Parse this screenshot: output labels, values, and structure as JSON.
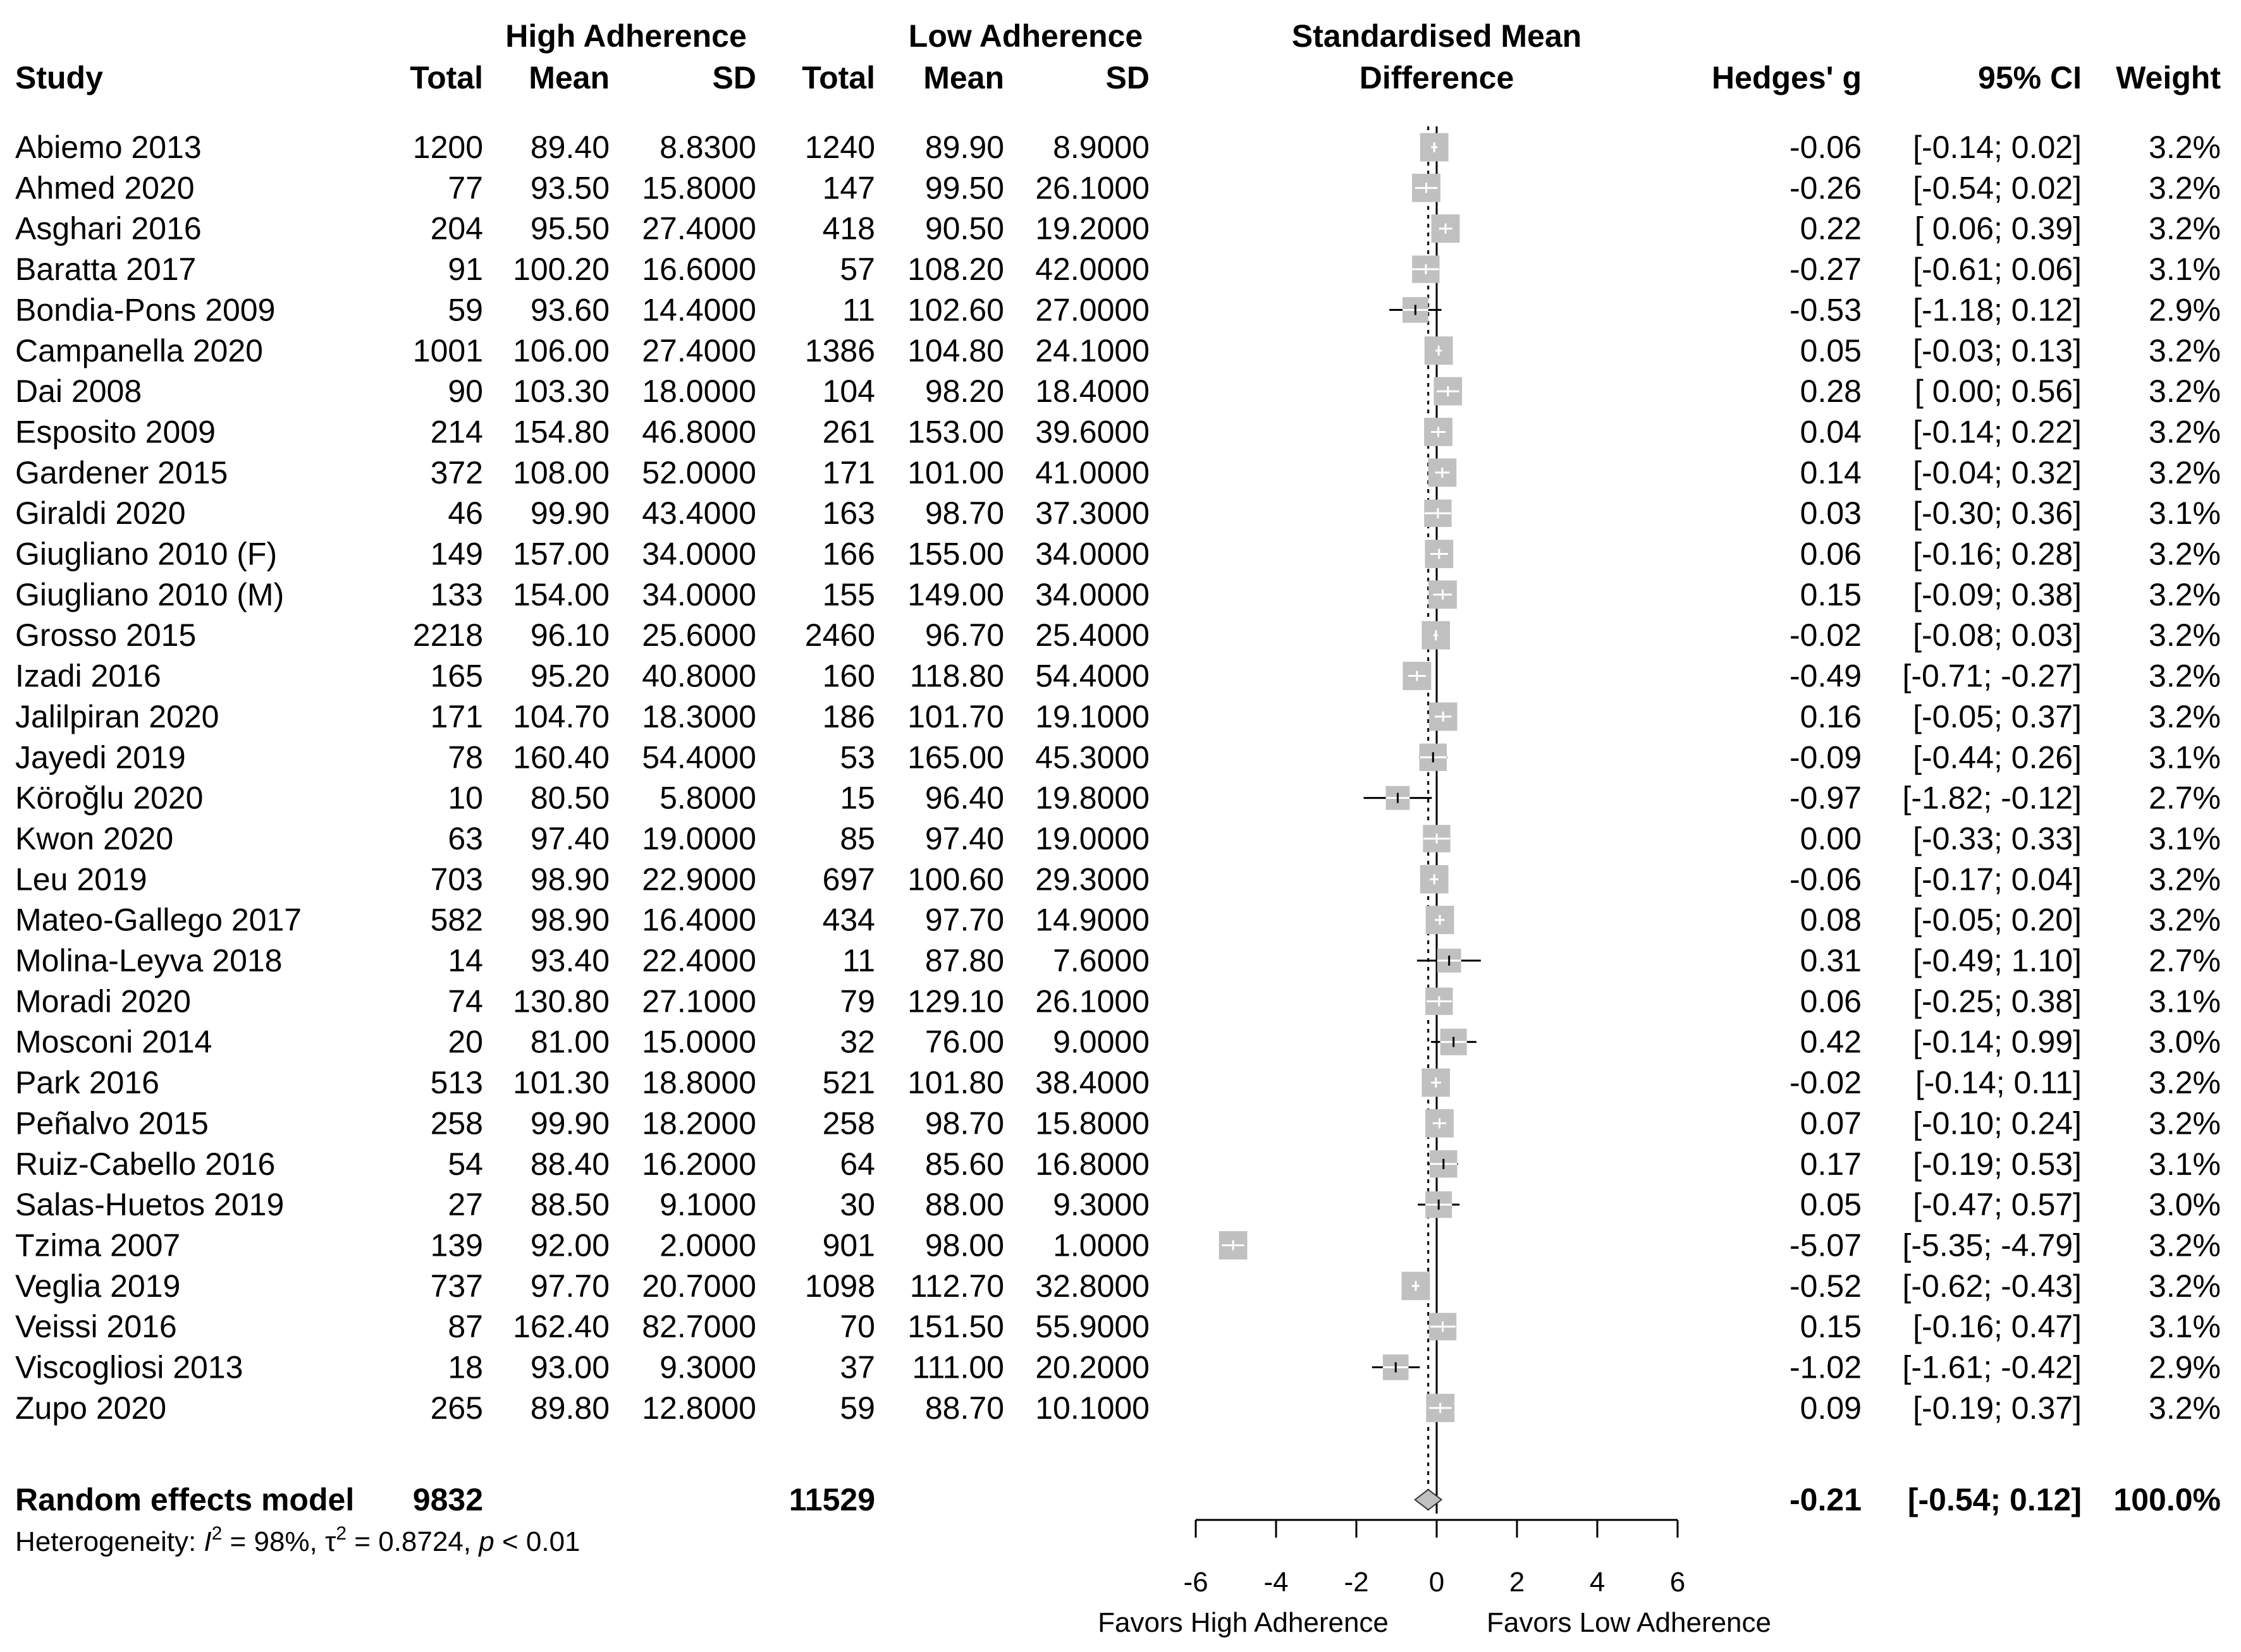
{
  "chart_data": {
    "type": "forest",
    "title": "Standardised Mean Difference",
    "headers": {
      "group_high": "High Adherence",
      "group_low": "Low Adherence",
      "study": "Study",
      "total": "Total",
      "mean": "Mean",
      "sd": "SD",
      "smd_line1": "Standardised Mean",
      "smd_line2": "Difference",
      "hedges": "Hedges' g",
      "ci": "95% CI",
      "weight": "Weight"
    },
    "studies": [
      {
        "study": "Abiemo 2013",
        "hi_total": "1200",
        "hi_mean": "89.40",
        "hi_sd": "8.8300",
        "lo_total": "1240",
        "lo_mean": "89.90",
        "lo_sd": "8.9000",
        "g": "-0.06",
        "ci": "[-0.14; 0.02]",
        "weight": "3.2%",
        "g_val": -0.06,
        "lo_val": -0.14,
        "hi_val": 0.02,
        "w_val": 3.2
      },
      {
        "study": "Ahmed 2020",
        "hi_total": "77",
        "hi_mean": "93.50",
        "hi_sd": "15.8000",
        "lo_total": "147",
        "lo_mean": "99.50",
        "lo_sd": "26.1000",
        "g": "-0.26",
        "ci": "[-0.54; 0.02]",
        "weight": "3.2%",
        "g_val": -0.26,
        "lo_val": -0.54,
        "hi_val": 0.02,
        "w_val": 3.2
      },
      {
        "study": "Asghari 2016",
        "hi_total": "204",
        "hi_mean": "95.50",
        "hi_sd": "27.4000",
        "lo_total": "418",
        "lo_mean": "90.50",
        "lo_sd": "19.2000",
        "g": "0.22",
        "ci": "[ 0.06; 0.39]",
        "weight": "3.2%",
        "g_val": 0.22,
        "lo_val": 0.06,
        "hi_val": 0.39,
        "w_val": 3.2
      },
      {
        "study": "Baratta 2017",
        "hi_total": "91",
        "hi_mean": "100.20",
        "hi_sd": "16.6000",
        "lo_total": "57",
        "lo_mean": "108.20",
        "lo_sd": "42.0000",
        "g": "-0.27",
        "ci": "[-0.61; 0.06]",
        "weight": "3.1%",
        "g_val": -0.27,
        "lo_val": -0.61,
        "hi_val": 0.06,
        "w_val": 3.1
      },
      {
        "study": "Bondia-Pons 2009",
        "hi_total": "59",
        "hi_mean": "93.60",
        "hi_sd": "14.4000",
        "lo_total": "11",
        "lo_mean": "102.60",
        "lo_sd": "27.0000",
        "g": "-0.53",
        "ci": "[-1.18; 0.12]",
        "weight": "2.9%",
        "g_val": -0.53,
        "lo_val": -1.18,
        "hi_val": 0.12,
        "w_val": 2.9
      },
      {
        "study": "Campanella 2020",
        "hi_total": "1001",
        "hi_mean": "106.00",
        "hi_sd": "27.4000",
        "lo_total": "1386",
        "lo_mean": "104.80",
        "lo_sd": "24.1000",
        "g": "0.05",
        "ci": "[-0.03; 0.13]",
        "weight": "3.2%",
        "g_val": 0.05,
        "lo_val": -0.03,
        "hi_val": 0.13,
        "w_val": 3.2
      },
      {
        "study": "Dai 2008",
        "hi_total": "90",
        "hi_mean": "103.30",
        "hi_sd": "18.0000",
        "lo_total": "104",
        "lo_mean": "98.20",
        "lo_sd": "18.4000",
        "g": "0.28",
        "ci": "[ 0.00; 0.56]",
        "weight": "3.2%",
        "g_val": 0.28,
        "lo_val": 0.0,
        "hi_val": 0.56,
        "w_val": 3.2
      },
      {
        "study": "Esposito 2009",
        "hi_total": "214",
        "hi_mean": "154.80",
        "hi_sd": "46.8000",
        "lo_total": "261",
        "lo_mean": "153.00",
        "lo_sd": "39.6000",
        "g": "0.04",
        "ci": "[-0.14; 0.22]",
        "weight": "3.2%",
        "g_val": 0.04,
        "lo_val": -0.14,
        "hi_val": 0.22,
        "w_val": 3.2
      },
      {
        "study": "Gardener 2015",
        "hi_total": "372",
        "hi_mean": "108.00",
        "hi_sd": "52.0000",
        "lo_total": "171",
        "lo_mean": "101.00",
        "lo_sd": "41.0000",
        "g": "0.14",
        "ci": "[-0.04; 0.32]",
        "weight": "3.2%",
        "g_val": 0.14,
        "lo_val": -0.04,
        "hi_val": 0.32,
        "w_val": 3.2
      },
      {
        "study": "Giraldi 2020",
        "hi_total": "46",
        "hi_mean": "99.90",
        "hi_sd": "43.4000",
        "lo_total": "163",
        "lo_mean": "98.70",
        "lo_sd": "37.3000",
        "g": "0.03",
        "ci": "[-0.30; 0.36]",
        "weight": "3.1%",
        "g_val": 0.03,
        "lo_val": -0.3,
        "hi_val": 0.36,
        "w_val": 3.1
      },
      {
        "study": "Giugliano 2010 (F)",
        "hi_total": "149",
        "hi_mean": "157.00",
        "hi_sd": "34.0000",
        "lo_total": "166",
        "lo_mean": "155.00",
        "lo_sd": "34.0000",
        "g": "0.06",
        "ci": "[-0.16; 0.28]",
        "weight": "3.2%",
        "g_val": 0.06,
        "lo_val": -0.16,
        "hi_val": 0.28,
        "w_val": 3.2
      },
      {
        "study": "Giugliano 2010 (M)",
        "hi_total": "133",
        "hi_mean": "154.00",
        "hi_sd": "34.0000",
        "lo_total": "155",
        "lo_mean": "149.00",
        "lo_sd": "34.0000",
        "g": "0.15",
        "ci": "[-0.09; 0.38]",
        "weight": "3.2%",
        "g_val": 0.15,
        "lo_val": -0.09,
        "hi_val": 0.38,
        "w_val": 3.2
      },
      {
        "study": "Grosso 2015",
        "hi_total": "2218",
        "hi_mean": "96.10",
        "hi_sd": "25.6000",
        "lo_total": "2460",
        "lo_mean": "96.70",
        "lo_sd": "25.4000",
        "g": "-0.02",
        "ci": "[-0.08; 0.03]",
        "weight": "3.2%",
        "g_val": -0.02,
        "lo_val": -0.08,
        "hi_val": 0.03,
        "w_val": 3.2
      },
      {
        "study": "Izadi 2016",
        "hi_total": "165",
        "hi_mean": "95.20",
        "hi_sd": "40.8000",
        "lo_total": "160",
        "lo_mean": "118.80",
        "lo_sd": "54.4000",
        "g": "-0.49",
        "ci": "[-0.71; -0.27]",
        "weight": "3.2%",
        "g_val": -0.49,
        "lo_val": -0.71,
        "hi_val": -0.27,
        "w_val": 3.2
      },
      {
        "study": "Jalilpiran 2020",
        "hi_total": "171",
        "hi_mean": "104.70",
        "hi_sd": "18.3000",
        "lo_total": "186",
        "lo_mean": "101.70",
        "lo_sd": "19.1000",
        "g": "0.16",
        "ci": "[-0.05; 0.37]",
        "weight": "3.2%",
        "g_val": 0.16,
        "lo_val": -0.05,
        "hi_val": 0.37,
        "w_val": 3.2
      },
      {
        "study": "Jayedi 2019",
        "hi_total": "78",
        "hi_mean": "160.40",
        "hi_sd": "54.4000",
        "lo_total": "53",
        "lo_mean": "165.00",
        "lo_sd": "45.3000",
        "g": "-0.09",
        "ci": "[-0.44; 0.26]",
        "weight": "3.1%",
        "g_val": -0.09,
        "lo_val": -0.44,
        "hi_val": 0.26,
        "w_val": 3.1
      },
      {
        "study": "Köroğlu 2020",
        "hi_total": "10",
        "hi_mean": "80.50",
        "hi_sd": "5.8000",
        "lo_total": "15",
        "lo_mean": "96.40",
        "lo_sd": "19.8000",
        "g": "-0.97",
        "ci": "[-1.82; -0.12]",
        "weight": "2.7%",
        "g_val": -0.97,
        "lo_val": -1.82,
        "hi_val": -0.12,
        "w_val": 2.7
      },
      {
        "study": "Kwon 2020",
        "hi_total": "63",
        "hi_mean": "97.40",
        "hi_sd": "19.0000",
        "lo_total": "85",
        "lo_mean": "97.40",
        "lo_sd": "19.0000",
        "g": "0.00",
        "ci": "[-0.33; 0.33]",
        "weight": "3.1%",
        "g_val": 0.0,
        "lo_val": -0.33,
        "hi_val": 0.33,
        "w_val": 3.1
      },
      {
        "study": "Leu 2019",
        "hi_total": "703",
        "hi_mean": "98.90",
        "hi_sd": "22.9000",
        "lo_total": "697",
        "lo_mean": "100.60",
        "lo_sd": "29.3000",
        "g": "-0.06",
        "ci": "[-0.17; 0.04]",
        "weight": "3.2%",
        "g_val": -0.06,
        "lo_val": -0.17,
        "hi_val": 0.04,
        "w_val": 3.2
      },
      {
        "study": "Mateo-Gallego 2017",
        "hi_total": "582",
        "hi_mean": "98.90",
        "hi_sd": "16.4000",
        "lo_total": "434",
        "lo_mean": "97.70",
        "lo_sd": "14.9000",
        "g": "0.08",
        "ci": "[-0.05; 0.20]",
        "weight": "3.2%",
        "g_val": 0.08,
        "lo_val": -0.05,
        "hi_val": 0.2,
        "w_val": 3.2
      },
      {
        "study": "Molina-Leyva 2018",
        "hi_total": "14",
        "hi_mean": "93.40",
        "hi_sd": "22.4000",
        "lo_total": "11",
        "lo_mean": "87.80",
        "lo_sd": "7.6000",
        "g": "0.31",
        "ci": "[-0.49; 1.10]",
        "weight": "2.7%",
        "g_val": 0.31,
        "lo_val": -0.49,
        "hi_val": 1.1,
        "w_val": 2.7
      },
      {
        "study": "Moradi 2020",
        "hi_total": "74",
        "hi_mean": "130.80",
        "hi_sd": "27.1000",
        "lo_total": "79",
        "lo_mean": "129.10",
        "lo_sd": "26.1000",
        "g": "0.06",
        "ci": "[-0.25; 0.38]",
        "weight": "3.1%",
        "g_val": 0.06,
        "lo_val": -0.25,
        "hi_val": 0.38,
        "w_val": 3.1
      },
      {
        "study": "Mosconi 2014",
        "hi_total": "20",
        "hi_mean": "81.00",
        "hi_sd": "15.0000",
        "lo_total": "32",
        "lo_mean": "76.00",
        "lo_sd": "9.0000",
        "g": "0.42",
        "ci": "[-0.14; 0.99]",
        "weight": "3.0%",
        "g_val": 0.42,
        "lo_val": -0.14,
        "hi_val": 0.99,
        "w_val": 3.0
      },
      {
        "study": "Park 2016",
        "hi_total": "513",
        "hi_mean": "101.30",
        "hi_sd": "18.8000",
        "lo_total": "521",
        "lo_mean": "101.80",
        "lo_sd": "38.4000",
        "g": "-0.02",
        "ci": "[-0.14; 0.11]",
        "weight": "3.2%",
        "g_val": -0.02,
        "lo_val": -0.14,
        "hi_val": 0.11,
        "w_val": 3.2
      },
      {
        "study": "Peñalvo 2015",
        "hi_total": "258",
        "hi_mean": "99.90",
        "hi_sd": "18.2000",
        "lo_total": "258",
        "lo_mean": "98.70",
        "lo_sd": "15.8000",
        "g": "0.07",
        "ci": "[-0.10; 0.24]",
        "weight": "3.2%",
        "g_val": 0.07,
        "lo_val": -0.1,
        "hi_val": 0.24,
        "w_val": 3.2
      },
      {
        "study": "Ruiz-Cabello 2016",
        "hi_total": "54",
        "hi_mean": "88.40",
        "hi_sd": "16.2000",
        "lo_total": "64",
        "lo_mean": "85.60",
        "lo_sd": "16.8000",
        "g": "0.17",
        "ci": "[-0.19; 0.53]",
        "weight": "3.1%",
        "g_val": 0.17,
        "lo_val": -0.19,
        "hi_val": 0.53,
        "w_val": 3.1
      },
      {
        "study": "Salas-Huetos 2019",
        "hi_total": "27",
        "hi_mean": "88.50",
        "hi_sd": "9.1000",
        "lo_total": "30",
        "lo_mean": "88.00",
        "lo_sd": "9.3000",
        "g": "0.05",
        "ci": "[-0.47; 0.57]",
        "weight": "3.0%",
        "g_val": 0.05,
        "lo_val": -0.47,
        "hi_val": 0.57,
        "w_val": 3.0
      },
      {
        "study": "Tzima 2007",
        "hi_total": "139",
        "hi_mean": "92.00",
        "hi_sd": "2.0000",
        "lo_total": "901",
        "lo_mean": "98.00",
        "lo_sd": "1.0000",
        "g": "-5.07",
        "ci": "[-5.35; -4.79]",
        "weight": "3.2%",
        "g_val": -5.07,
        "lo_val": -5.35,
        "hi_val": -4.79,
        "w_val": 3.2
      },
      {
        "study": "Veglia 2019",
        "hi_total": "737",
        "hi_mean": "97.70",
        "hi_sd": "20.7000",
        "lo_total": "1098",
        "lo_mean": "112.70",
        "lo_sd": "32.8000",
        "g": "-0.52",
        "ci": "[-0.62; -0.43]",
        "weight": "3.2%",
        "g_val": -0.52,
        "lo_val": -0.62,
        "hi_val": -0.43,
        "w_val": 3.2
      },
      {
        "study": "Veissi 2016",
        "hi_total": "87",
        "hi_mean": "162.40",
        "hi_sd": "82.7000",
        "lo_total": "70",
        "lo_mean": "151.50",
        "lo_sd": "55.9000",
        "g": "0.15",
        "ci": "[-0.16; 0.47]",
        "weight": "3.1%",
        "g_val": 0.15,
        "lo_val": -0.16,
        "hi_val": 0.47,
        "w_val": 3.1
      },
      {
        "study": "Viscogliosi 2013",
        "hi_total": "18",
        "hi_mean": "93.00",
        "hi_sd": "9.3000",
        "lo_total": "37",
        "lo_mean": "111.00",
        "lo_sd": "20.2000",
        "g": "-1.02",
        "ci": "[-1.61; -0.42]",
        "weight": "2.9%",
        "g_val": -1.02,
        "lo_val": -1.61,
        "hi_val": -0.42,
        "w_val": 2.9
      },
      {
        "study": "Zupo 2020",
        "hi_total": "265",
        "hi_mean": "89.80",
        "hi_sd": "12.8000",
        "lo_total": "59",
        "lo_mean": "88.70",
        "lo_sd": "10.1000",
        "g": "0.09",
        "ci": "[-0.19; 0.37]",
        "weight": "3.2%",
        "g_val": 0.09,
        "lo_val": -0.19,
        "hi_val": 0.37,
        "w_val": 3.2
      }
    ],
    "pooled": {
      "label": "Random effects model",
      "hi_total": "9832",
      "lo_total": "11529",
      "g": "-0.21",
      "ci": "[-0.54; 0.12]",
      "weight": "100.0%",
      "g_val": -0.21,
      "lo_val": -0.54,
      "hi_val": 0.12
    },
    "heterogeneity": {
      "prefix": "Heterogeneity: ",
      "i2_symbol": "I",
      "i2_sup": "2",
      "i2_value": " = 98%, ",
      "tau_symbol": "τ",
      "tau_sup": "2",
      "tau_value": " = 0.8724, ",
      "p_symbol": "p",
      "p_value": " < 0.01"
    },
    "xaxis": {
      "ticks": [
        -6,
        -4,
        -2,
        0,
        2,
        4,
        6
      ],
      "tick_labels": [
        "-6",
        "-4",
        "-2",
        "0",
        "2",
        "4",
        "6"
      ],
      "xlim": [
        -6,
        6
      ],
      "label_left": "Favors High Adherence",
      "label_right": "Favors Low Adherence"
    },
    "colors": {
      "box": "#c0c0c0",
      "line": "#000000",
      "diamond": "#c0c0c0"
    }
  }
}
